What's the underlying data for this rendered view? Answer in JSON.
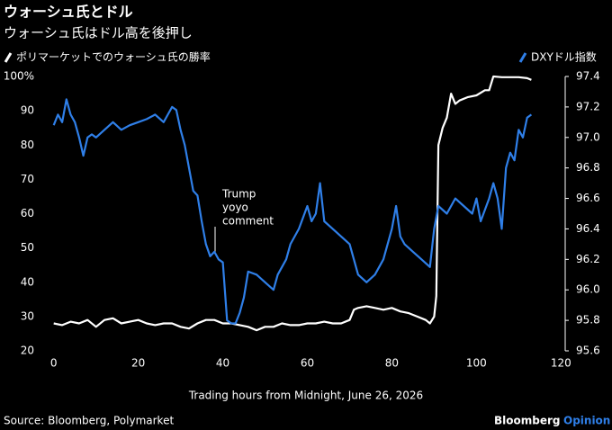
{
  "chart_data": {
    "type": "line",
    "title": "ウォーシュ氏とドル",
    "subtitle": "ウォーシュ氏はドル高を後押し",
    "xlabel": "Trading hours from Midnight, June 26, 2026",
    "source": "Source: Bloomberg, Polymarket",
    "brand": [
      "Bloomberg",
      "Opinion"
    ],
    "annotation": [
      "Trump",
      "yoyo",
      "comment"
    ],
    "xlim": [
      -1,
      121
    ],
    "xticks": [
      0,
      20,
      40,
      60,
      80,
      100,
      120
    ],
    "ylim": [
      20,
      100
    ],
    "yticks": [
      20,
      30,
      40,
      50,
      60,
      70,
      80,
      90,
      {
        "value": 100,
        "label": "100%"
      }
    ],
    "y2lim": [
      95.6,
      97.4
    ],
    "y2ticks": [
      95.6,
      95.8,
      {
        "value": 96,
        "label": "96.0"
      },
      96.2,
      96.4,
      96.6,
      96.8,
      {
        "value": 97,
        "label": "97.0"
      },
      97.2,
      97.4
    ],
    "series": [
      {
        "name": "ポリマーケットでのウォーシュ氏の勝率",
        "color": "#ffffff",
        "x": [
          0,
          2,
          4,
          6,
          8,
          10,
          12,
          14,
          16,
          18,
          20,
          22,
          24,
          26,
          28,
          30,
          32,
          34,
          36,
          38,
          40,
          42,
          44,
          46,
          48,
          50,
          52,
          54,
          56,
          58,
          60,
          62,
          64,
          66,
          68,
          70,
          71,
          72,
          74,
          76,
          78,
          80,
          82,
          84,
          86,
          88,
          89,
          90,
          90.5,
          91,
          92,
          93,
          94,
          95,
          96,
          98,
          100,
          102,
          103,
          104,
          106,
          108,
          110,
          112,
          113
        ],
        "values": [
          28,
          27.5,
          28.5,
          28,
          29,
          27,
          29,
          29.5,
          28,
          28.5,
          29,
          28,
          27.5,
          28,
          28,
          27,
          26.5,
          28,
          29,
          29,
          28,
          28,
          27.5,
          27,
          26,
          27,
          27,
          28,
          27.5,
          27.5,
          28,
          28,
          28.5,
          28,
          28,
          29,
          32,
          32.5,
          33,
          32.5,
          32,
          32.5,
          31.5,
          31,
          30,
          29,
          28,
          30,
          36,
          80,
          85,
          88,
          95,
          92,
          93,
          94,
          94.5,
          96,
          96,
          100,
          99.8,
          99.8,
          99.8,
          99.5,
          99
        ]
      },
      {
        "name": "DXYドル指数",
        "color": "#2f7fe8",
        "axis": "y2",
        "x": [
          0,
          1,
          2,
          3,
          4,
          5,
          6,
          7,
          8,
          9,
          10,
          12,
          14,
          16,
          18,
          20,
          22,
          24,
          26,
          27,
          28,
          29,
          30,
          31,
          32,
          33,
          34,
          35,
          36,
          37,
          38,
          39,
          40,
          41,
          42,
          43,
          44,
          45,
          46,
          48,
          50,
          52,
          53,
          55,
          56,
          58,
          60,
          61,
          62,
          63,
          64,
          66,
          68,
          70,
          72,
          74,
          76,
          78,
          80,
          81,
          82,
          83,
          85,
          87,
          89,
          90,
          91,
          93,
          95,
          97,
          99,
          100,
          101,
          103,
          104,
          105,
          106,
          107,
          108,
          109,
          110,
          111,
          112,
          113
        ],
        "values": [
          97.08,
          97.15,
          97.1,
          97.25,
          97.15,
          97.1,
          97.0,
          96.88,
          97.0,
          97.02,
          97.0,
          97.05,
          97.1,
          97.05,
          97.08,
          97.1,
          97.12,
          97.15,
          97.1,
          97.15,
          97.2,
          97.18,
          97.05,
          96.95,
          96.8,
          96.65,
          96.62,
          96.45,
          96.3,
          96.22,
          96.25,
          96.2,
          96.18,
          95.8,
          95.78,
          95.78,
          95.85,
          95.95,
          96.12,
          96.1,
          96.05,
          96.0,
          96.1,
          96.2,
          96.3,
          96.4,
          96.55,
          96.45,
          96.5,
          96.7,
          96.45,
          96.4,
          96.35,
          96.3,
          96.1,
          96.05,
          96.1,
          96.2,
          96.4,
          96.55,
          96.35,
          96.3,
          96.25,
          96.2,
          96.15,
          96.4,
          96.55,
          96.5,
          96.6,
          96.55,
          96.5,
          96.6,
          96.45,
          96.6,
          96.7,
          96.6,
          96.4,
          96.8,
          96.9,
          96.85,
          97.05,
          97.0,
          97.13,
          97.15
        ]
      }
    ]
  }
}
